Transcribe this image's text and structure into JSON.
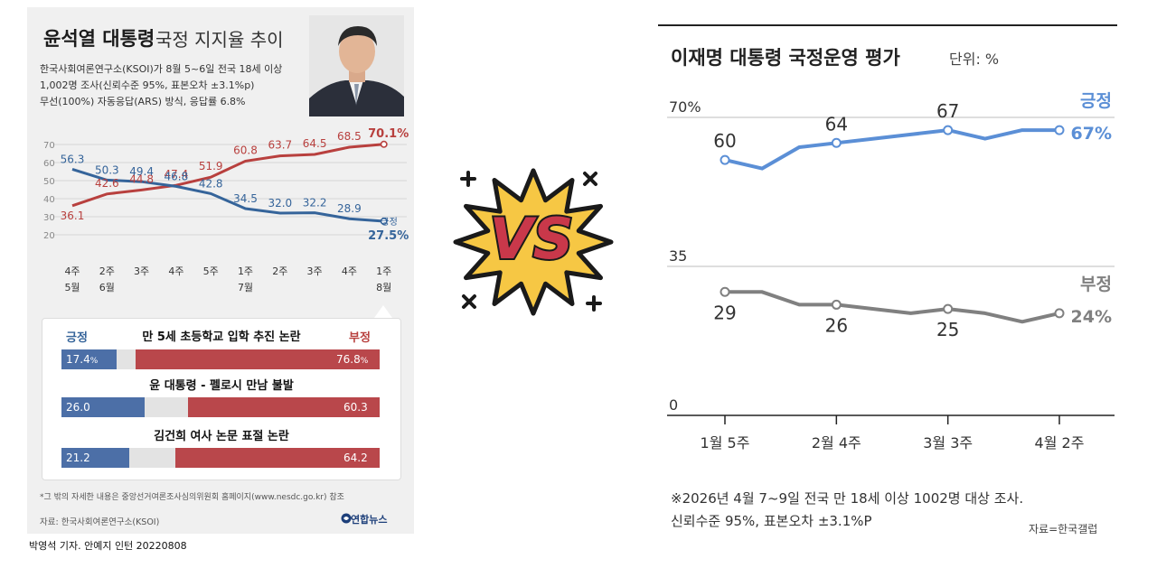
{
  "left": {
    "title_bold": "윤석열 대통령",
    "title_light": "국정 지지율 추이",
    "survey_lines": [
      "한국사회여론연구소(KSOI)가 8월 5~6일 전국 18세 이상",
      "1,002명 조사(신뢰수준 95%, 표본오차 ±3.1%p)",
      "무선(100%) 자동응답(ARS) 방식, 응답률 6.8%"
    ],
    "issues_header": {
      "positive": "긍정",
      "negative": "부정"
    },
    "issues": [
      {
        "label": "만 5세 초등학교 입학 추진 논란",
        "positive": 17.4,
        "negative": 76.8,
        "positive_text": "17.4",
        "positive_unit": "%",
        "negative_text": "76.8",
        "negative_unit": "%"
      },
      {
        "label": "윤 대통령 - 펠로시 만남 불발",
        "positive": 26.0,
        "negative": 60.3,
        "positive_text": "26.0",
        "positive_unit": "",
        "negative_text": "60.3",
        "negative_unit": ""
      },
      {
        "label": "김건희 여사 논문 표절 논란",
        "positive": 21.2,
        "negative": 64.2,
        "positive_text": "21.2",
        "positive_unit": "",
        "negative_text": "64.2",
        "negative_unit": ""
      }
    ],
    "footnote": "*그 밖의 자세한 내용은 중앙선거여론조사심의위원회 홈페이지(www.nesdc.go.kr) 참조",
    "source": "자료: 한국사회여론연구소(KSOI)",
    "logo": "연합뉴스",
    "credit": "박영석 기자. 안예지 인턴  20220808"
  },
  "vs_text": "VS",
  "right": {
    "title": "이재명 대통령 국정운영 평가",
    "unit": "단위: %",
    "note_line1": "※2026년 4월 7~9일 전국 만 18세 이상 1002명 대상 조사.",
    "note_line2": "신뢰수준 95%, 표본오차 ±3.1%P",
    "source": "자료=한국갤럽"
  },
  "colors": {
    "left_pos": "#35649a",
    "left_neg": "#b8403e",
    "right_pos": "#5b8fd6",
    "right_neg": "#808080",
    "vs_star": "#f6c744",
    "vs_letters": "#c9384a"
  },
  "chart_data": [
    {
      "type": "line",
      "title": "윤석열 대통령 국정 지지율 추이",
      "x": [
        "4주 5월",
        "2주 6월",
        "3주",
        "4주",
        "5주",
        "1주 7월",
        "2주",
        "3주",
        "4주",
        "1주 8월"
      ],
      "x_ticks": [
        [
          "4주",
          "5월"
        ],
        [
          "2주",
          "6월"
        ],
        [
          "3주",
          ""
        ],
        [
          "4주",
          ""
        ],
        [
          "5주",
          ""
        ],
        [
          "1주",
          "7월"
        ],
        [
          "2주",
          ""
        ],
        [
          "3주",
          ""
        ],
        [
          "4주",
          ""
        ],
        [
          "1주",
          "8월"
        ]
      ],
      "yticks": [
        20,
        30,
        40,
        50,
        60,
        70
      ],
      "ylim": [
        20,
        70
      ],
      "series": [
        {
          "name": "부정",
          "color": "#b8403e",
          "values": [
            36.1,
            42.6,
            44.8,
            47.4,
            51.9,
            60.8,
            63.7,
            64.5,
            68.5,
            70.1
          ],
          "labels": [
            "36.1",
            "42.6",
            "44.8",
            "47.4",
            "51.9",
            "60.8",
            "63.7",
            "64.5",
            "68.5",
            "70.1%"
          ]
        },
        {
          "name": "긍정",
          "color": "#35649a",
          "values": [
            56.3,
            50.3,
            49.4,
            46.8,
            42.8,
            34.5,
            32.0,
            32.2,
            28.9,
            27.5
          ],
          "labels": [
            "56.3",
            "50.3",
            "49.4",
            "46.8",
            "42.8",
            "34.5",
            "32.0",
            "32.2",
            "28.9",
            "27.5%"
          ]
        }
      ]
    },
    {
      "type": "line",
      "title": "이재명 대통령 국정운영 평가",
      "unit": "단위: %",
      "xticks": [
        "1월 5주",
        "2월 4주",
        "3월 3주",
        "4월 2주"
      ],
      "yticks": [
        {
          "v": 0,
          "label": "0"
        },
        {
          "v": 35,
          "label": "35"
        },
        {
          "v": 70,
          "label": "70%"
        }
      ],
      "ylim": [
        0,
        70
      ],
      "series": [
        {
          "name": "긍정",
          "end_label": "67%",
          "color": "#5b8fd6",
          "values": [
            60,
            58,
            63,
            64,
            65,
            66,
            67,
            65,
            67,
            67
          ],
          "labeled": [
            {
              "i": 0,
              "t": "60"
            },
            {
              "i": 3,
              "t": "64"
            },
            {
              "i": 6,
              "t": "67"
            }
          ]
        },
        {
          "name": "부정",
          "end_label": "24%",
          "color": "#808080",
          "values": [
            29,
            29,
            26,
            26,
            25,
            24,
            25,
            24,
            22,
            24
          ],
          "labeled": [
            {
              "i": 0,
              "t": "29"
            },
            {
              "i": 3,
              "t": "26"
            },
            {
              "i": 6,
              "t": "25"
            }
          ]
        }
      ]
    }
  ]
}
